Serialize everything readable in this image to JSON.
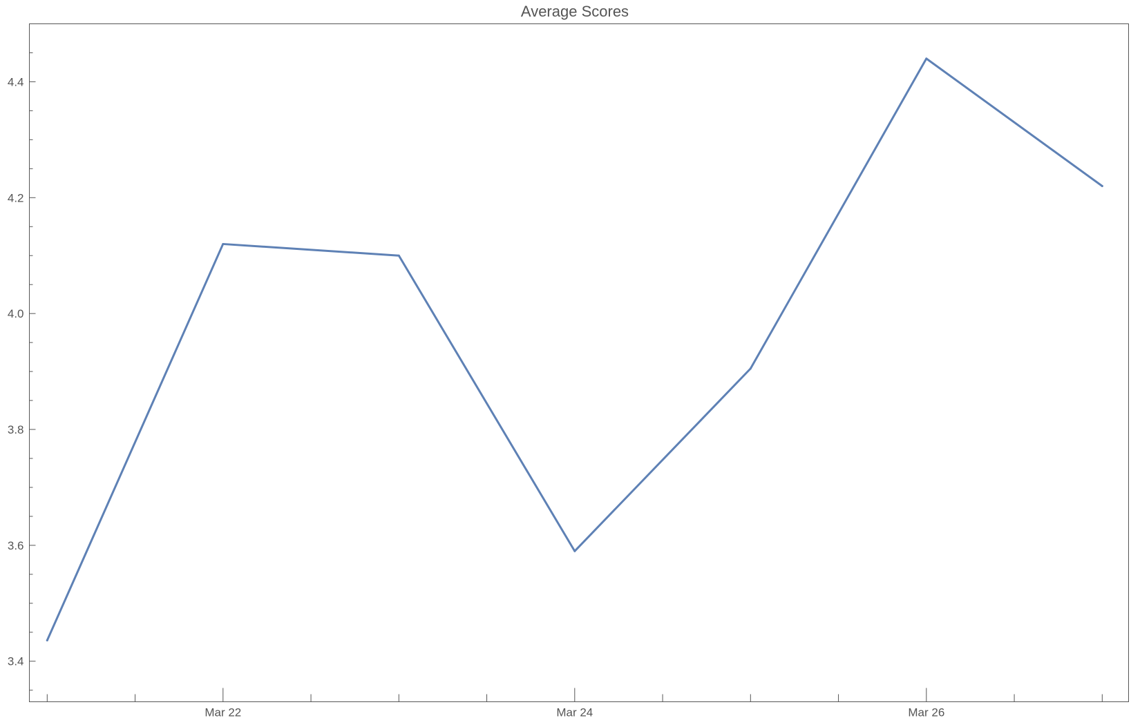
{
  "colors": {
    "series": "#5e81b5",
    "axis": "#555555"
  },
  "chart_data": {
    "type": "line",
    "title": "Average Scores",
    "xlabel": "",
    "ylabel": "",
    "x": [
      "2024-03-21",
      "2024-03-22",
      "2024-03-23",
      "2024-03-24",
      "2024-03-25",
      "2024-03-26",
      "2024-03-27"
    ],
    "series": [
      {
        "values": [
          3.436,
          4.12,
          4.1,
          3.59,
          3.905,
          4.44,
          4.22
        ]
      }
    ],
    "xlim": [
      "2024-03-20T21:34",
      "2024-03-27T03:36"
    ],
    "ylim": [
      3.33,
      4.5
    ],
    "y_major_ticks": [
      3.4,
      3.6,
      3.8,
      4.0,
      4.2,
      4.4
    ],
    "y_minor_step": 0.05,
    "x_major_ticks": [
      {
        "date": "2024-03-22",
        "label": "Mar 22"
      },
      {
        "date": "2024-03-24",
        "label": "Mar 24"
      },
      {
        "date": "2024-03-26",
        "label": "Mar 26"
      }
    ],
    "x_minor_step_hours": 12,
    "grid": false,
    "legend": "none"
  }
}
